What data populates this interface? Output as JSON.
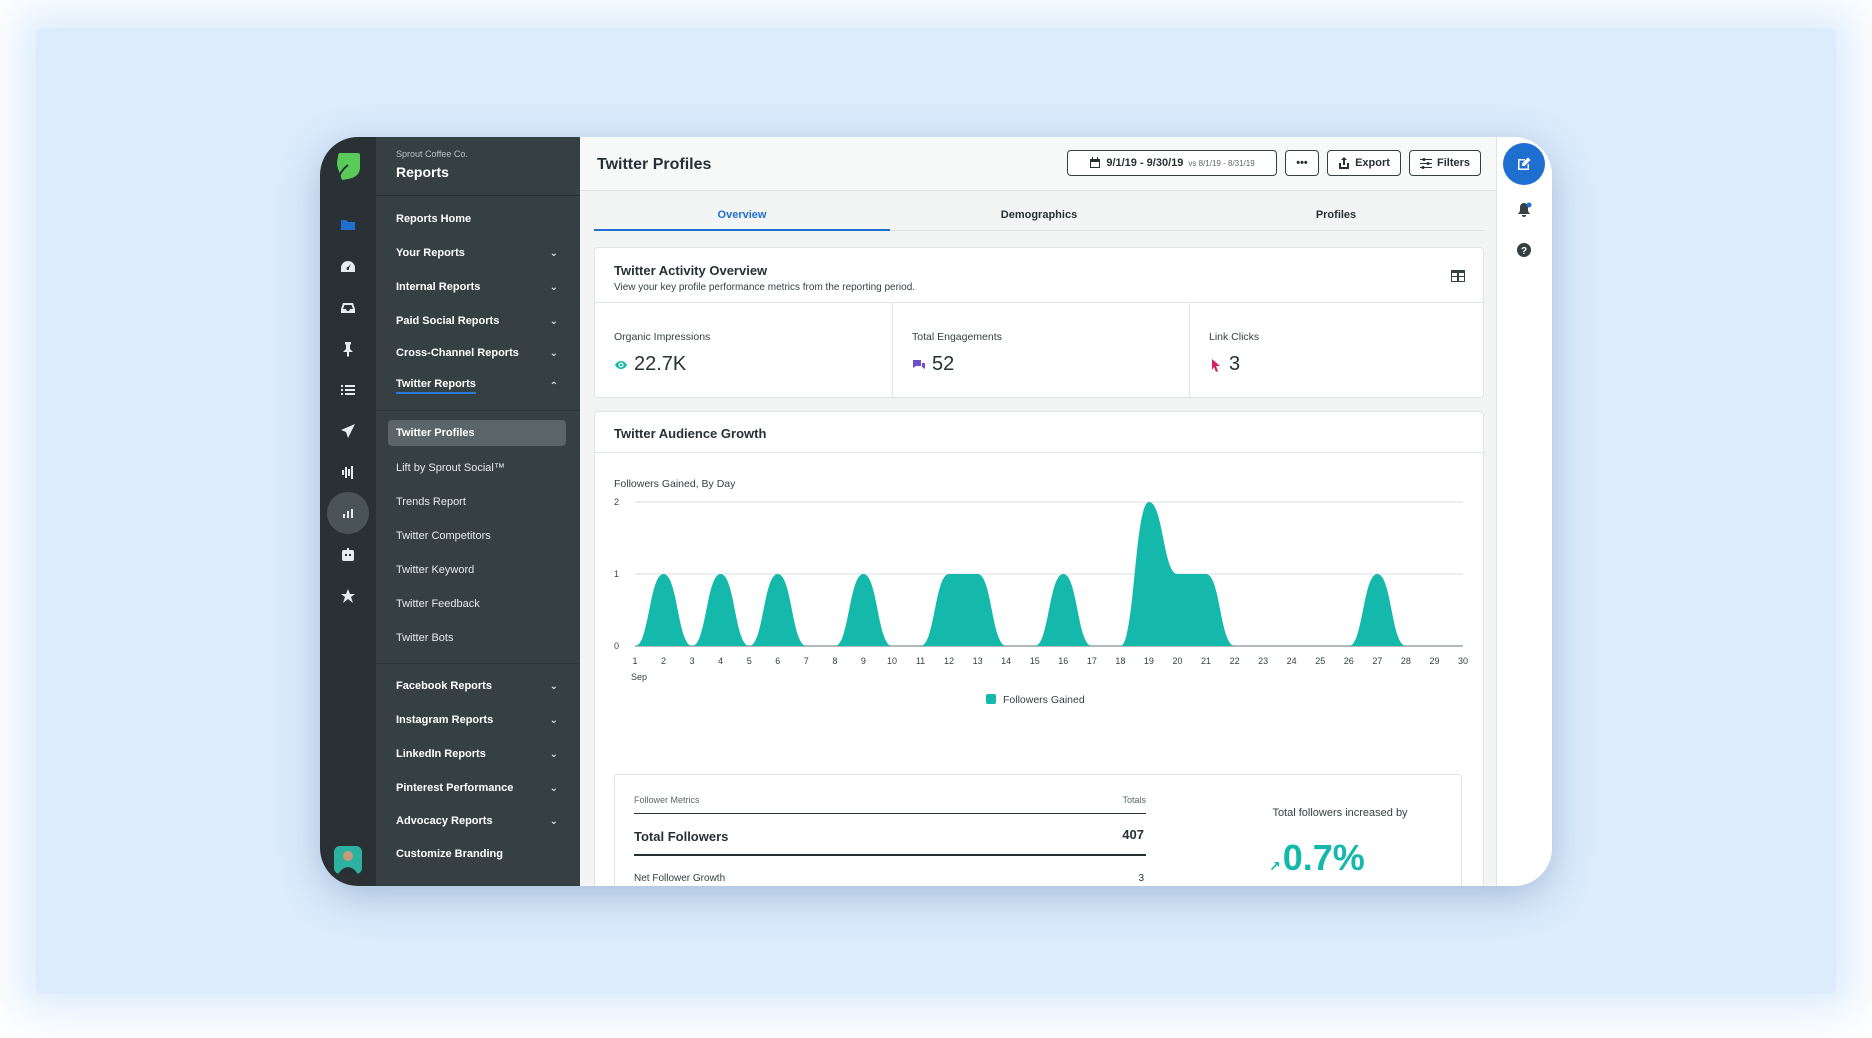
{
  "sidebar": {
    "org": "Sprout Coffee Co.",
    "title": "Reports",
    "items": [
      {
        "label": "Reports Home",
        "chevron": ""
      },
      {
        "label": "Your Reports",
        "chevron": "⌄"
      },
      {
        "label": "Internal Reports",
        "chevron": "⌄"
      },
      {
        "label": "Paid Social Reports",
        "chevron": "⌄"
      },
      {
        "label": "Cross-Channel Reports",
        "chevron": "⌄"
      },
      {
        "label": "Twitter Reports",
        "chevron": "⌃"
      }
    ],
    "twitter_sub": [
      "Twitter Profiles",
      "Lift by Sprout Social™",
      "Trends Report",
      "Twitter Competitors",
      "Twitter Keyword",
      "Twitter Feedback",
      "Twitter Bots"
    ],
    "bottom_items": [
      {
        "label": "Facebook Reports",
        "chevron": "⌄"
      },
      {
        "label": "Instagram Reports",
        "chevron": "⌄"
      },
      {
        "label": "LinkedIn Reports",
        "chevron": "⌄"
      },
      {
        "label": "Pinterest Performance",
        "chevron": "⌄"
      },
      {
        "label": "Advocacy Reports",
        "chevron": "⌄"
      },
      {
        "label": "Customize Branding",
        "chevron": ""
      }
    ]
  },
  "header": {
    "title": "Twitter Profiles",
    "date_range": "9/1/19 -  9/30/19",
    "compare_range": "vs 8/1/19 - 8/31/19",
    "more_label": "•••",
    "export_label": "Export",
    "filters_label": "Filters"
  },
  "tabs": [
    {
      "label": "Overview"
    },
    {
      "label": "Demographics"
    },
    {
      "label": "Profiles"
    }
  ],
  "activity": {
    "title": "Twitter Activity Overview",
    "subtitle": "View your key profile performance metrics from the reporting period.",
    "metrics": [
      {
        "label": "Organic Impressions",
        "value": "22.7K",
        "color": "#14b9ac"
      },
      {
        "label": "Total Engagements",
        "value": "52",
        "color": "#6c4fc9"
      },
      {
        "label": "Link Clicks",
        "value": "3",
        "color": "#d3216a"
      }
    ]
  },
  "growth": {
    "title": "Twitter Audience Growth",
    "chart_label": "Followers Gained, By Day",
    "table": {
      "col1": "Follower Metrics",
      "col2": "Totals",
      "rows": [
        {
          "label": "Total Followers",
          "value": "407"
        },
        {
          "label": "Net Follower Growth",
          "value": "3"
        }
      ]
    },
    "increase_label": "Total followers increased by",
    "increase_value": "0.7%",
    "increase_arrow": "↗"
  },
  "chart_data": {
    "type": "area",
    "x": [
      1,
      2,
      3,
      4,
      5,
      6,
      7,
      8,
      9,
      10,
      11,
      12,
      13,
      14,
      15,
      16,
      17,
      18,
      19,
      20,
      21,
      22,
      23,
      24,
      25,
      26,
      27,
      28,
      29,
      30
    ],
    "x_tick_labels": [
      "1",
      "2",
      "3",
      "4",
      "5",
      "6",
      "7",
      "8",
      "9",
      "10",
      "11",
      "12",
      "13",
      "14",
      "15",
      "16",
      "17",
      "18",
      "19",
      "20",
      "21",
      "22",
      "23",
      "24",
      "25",
      "26",
      "27",
      "28",
      "29",
      "30"
    ],
    "x_sub_label": "Sep",
    "series": [
      {
        "name": "Followers Gained",
        "values": [
          0,
          1,
          0,
          1,
          0,
          1,
          0,
          0,
          1,
          0,
          0,
          1,
          1,
          0,
          0,
          1,
          0,
          0,
          2,
          1,
          1,
          0,
          0,
          0,
          0,
          0,
          1,
          0,
          0,
          0
        ],
        "color": "#14b9ac"
      }
    ],
    "y_ticks": [
      "0",
      "1",
      "2"
    ],
    "ylim": [
      0,
      2
    ],
    "grid": true,
    "legend": "bottom"
  },
  "colors": {
    "accent": "#1f6fd1",
    "brand_green": "#59cb59",
    "teal": "#14b9ac"
  }
}
